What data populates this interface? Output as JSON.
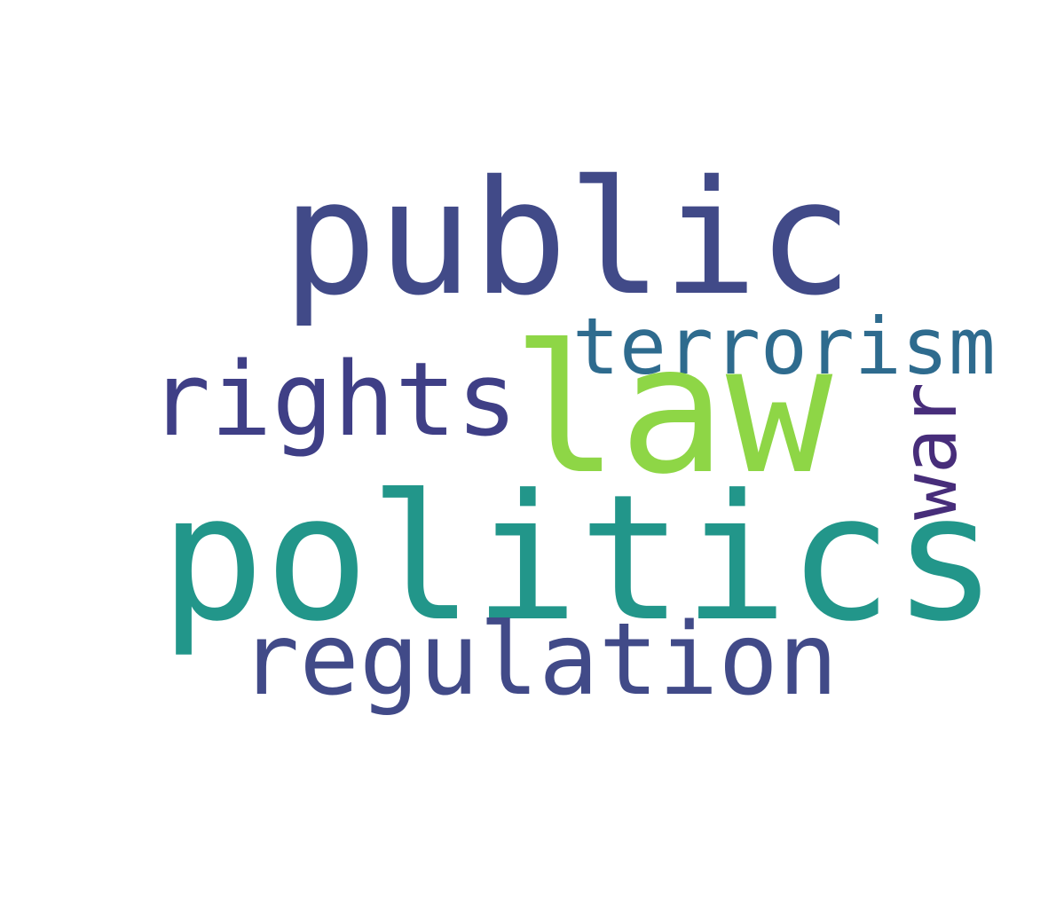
{
  "words": {
    "public": {
      "text": "public",
      "color": "#414a88"
    },
    "law": {
      "text": "law",
      "color": "#8ed646"
    },
    "politics": {
      "text": "politics",
      "color": "#22968a"
    },
    "regulation": {
      "text": "regulation",
      "color": "#414a88"
    },
    "rights": {
      "text": "rights",
      "color": "#3f3f86"
    },
    "terrorism": {
      "text": "terrorism",
      "color": "#2e6b8e"
    },
    "war": {
      "text": "war",
      "color": "#472d7a"
    }
  }
}
